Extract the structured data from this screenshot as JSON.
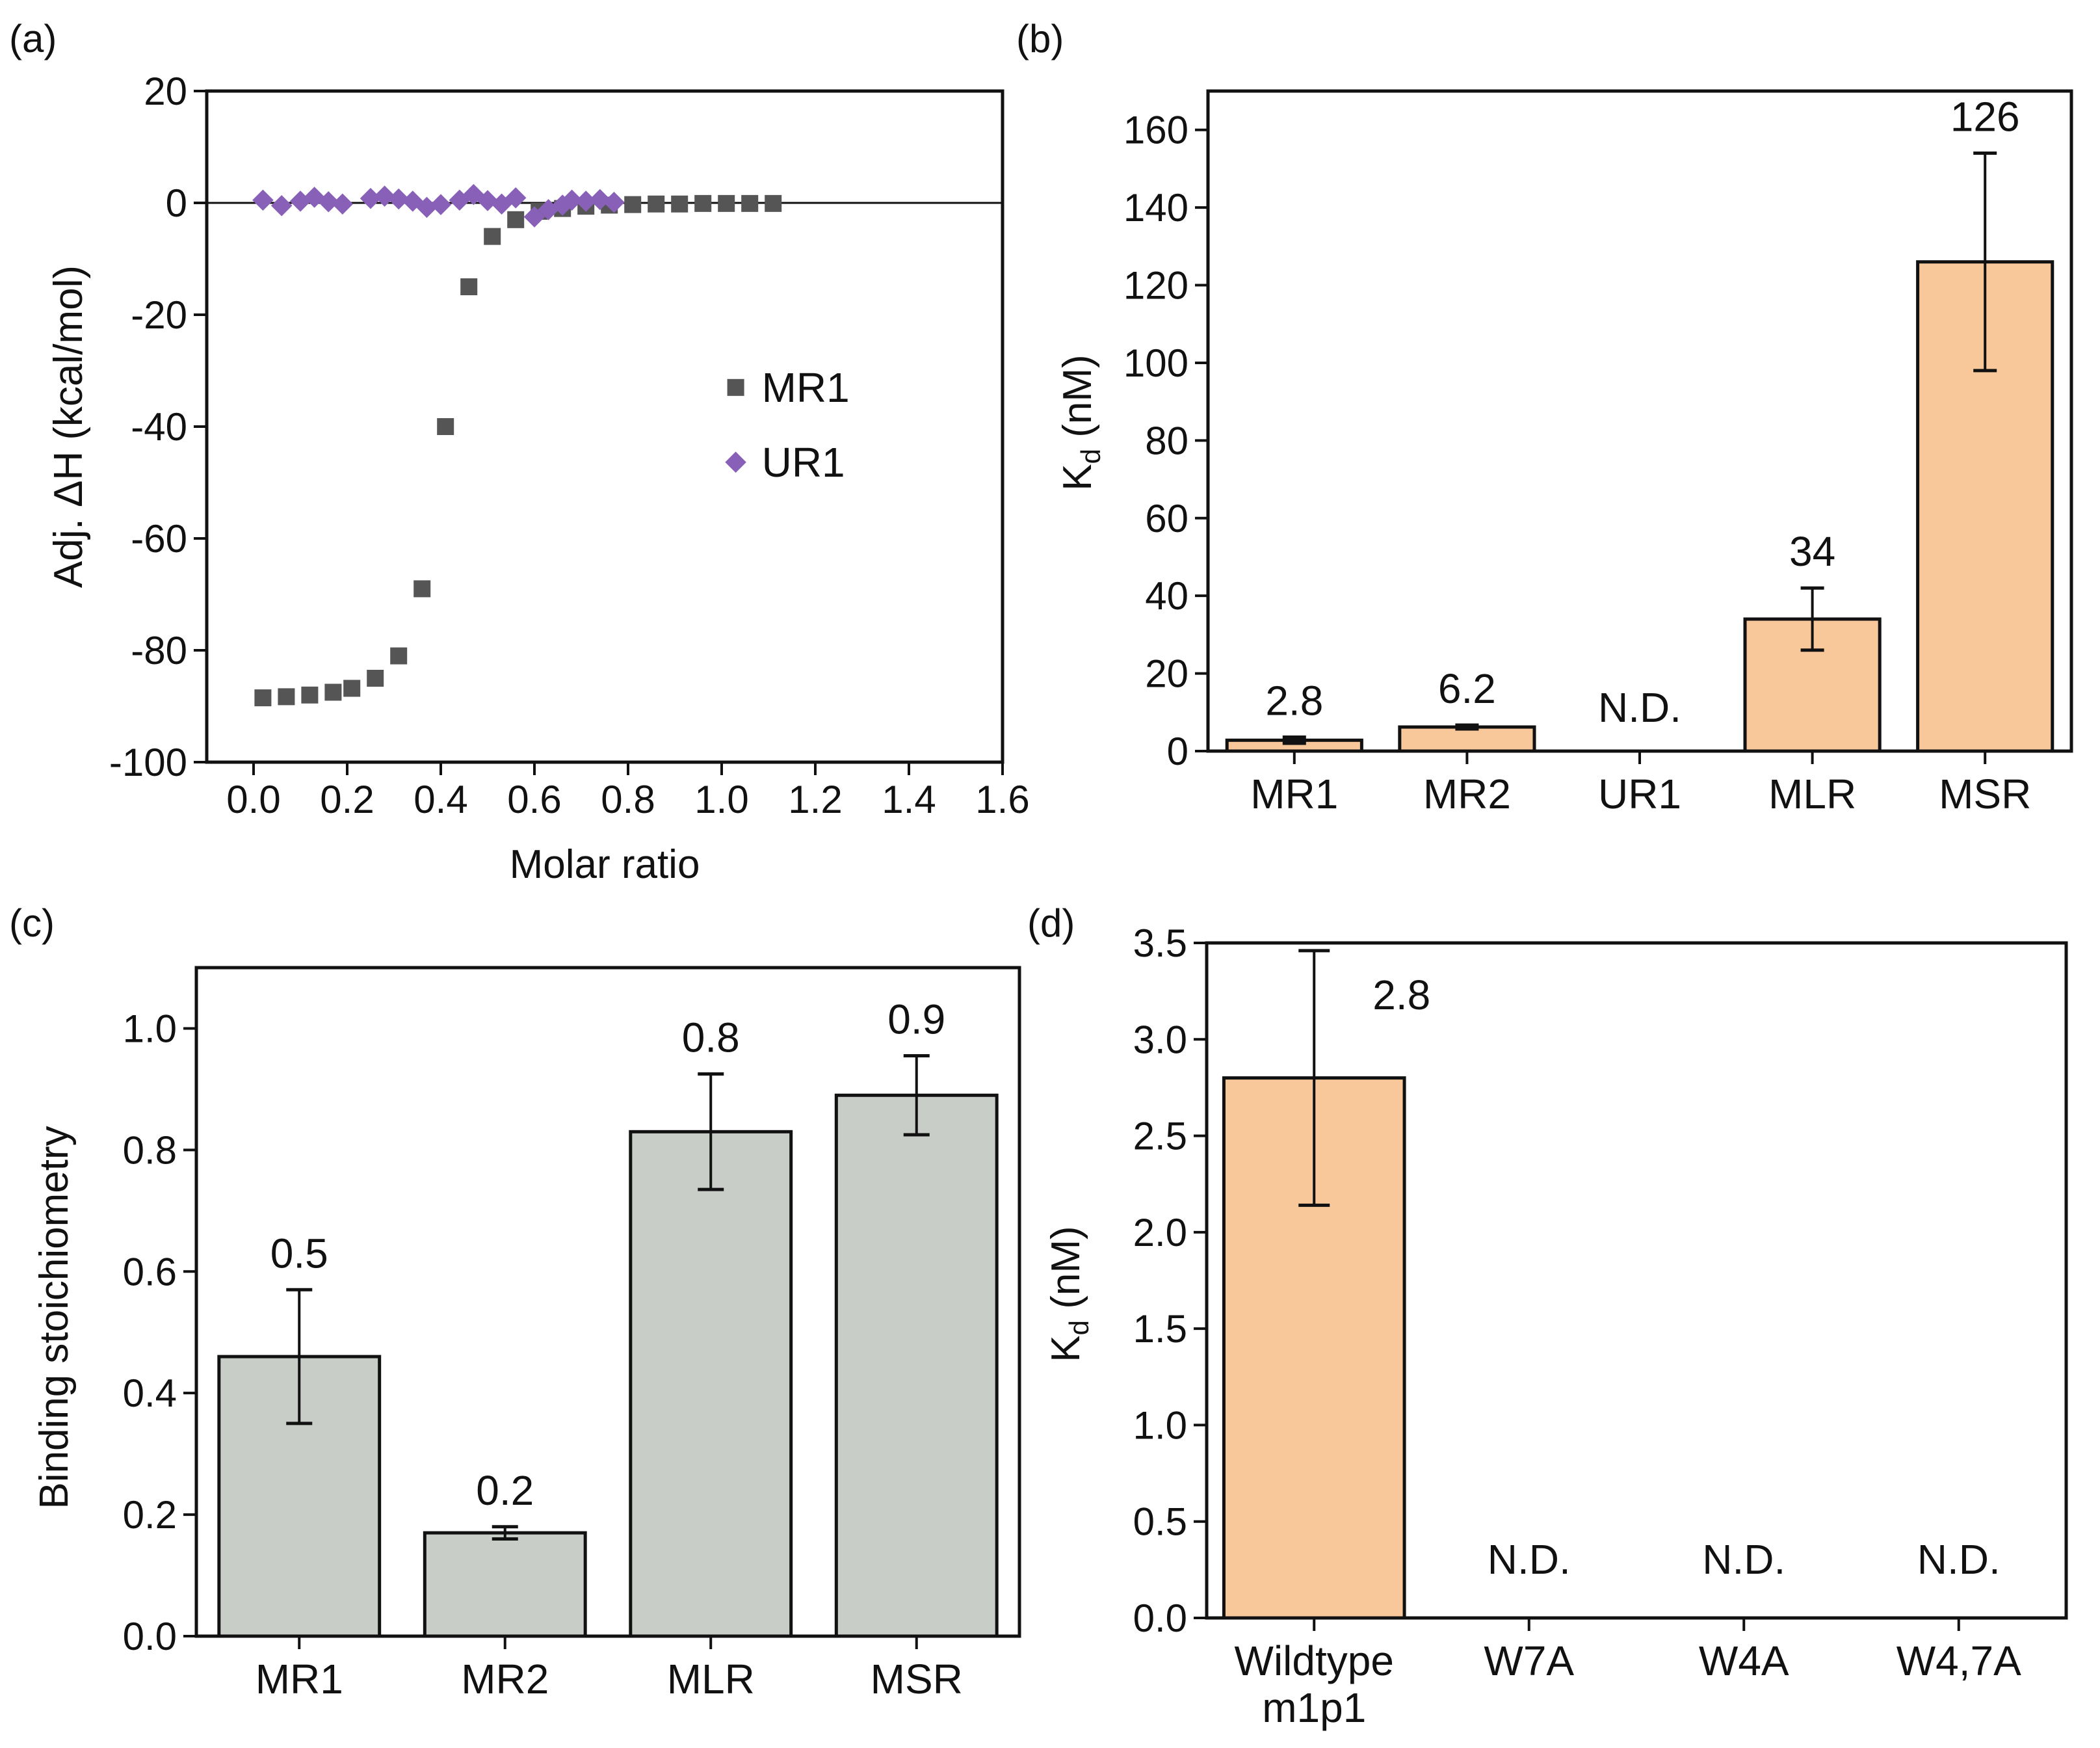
{
  "colors": {
    "mr1_marker": "#555555",
    "ur1_marker": "#8860b8",
    "kd_bar": "#f8c89a",
    "stoich_bar": "#c8cdc8",
    "axis": "#111111"
  },
  "chart_data": [
    {
      "panel": "(a)",
      "type": "scatter",
      "xlabel": "Molar ratio",
      "ylabel": "Adj. ΔH (kcal/mol)",
      "xlim": [
        -0.1,
        1.6
      ],
      "ylim": [
        -100,
        20
      ],
      "xticks": [
        0.0,
        0.2,
        0.4,
        0.6,
        0.8,
        1.0,
        1.2,
        1.4,
        1.6
      ],
      "xtick_labels": [
        "0.0",
        "0.2",
        "0.4",
        "0.6",
        "0.8",
        "1.0",
        "1.2",
        "1.4",
        "1.6"
      ],
      "yticks": [
        -100,
        -80,
        -60,
        -40,
        -20,
        0,
        20
      ],
      "ytick_labels": [
        "-100",
        "-80",
        "-60",
        "-40",
        "-20",
        "0",
        "20"
      ],
      "zero_line": 0,
      "series": [
        {
          "name": "MR1",
          "marker": "square",
          "points": [
            [
              0.02,
              -88.5
            ],
            [
              0.07,
              -88.3
            ],
            [
              0.12,
              -88.0
            ],
            [
              0.17,
              -87.5
            ],
            [
              0.21,
              -86.8
            ],
            [
              0.26,
              -85.0
            ],
            [
              0.31,
              -81.0
            ],
            [
              0.36,
              -69.0
            ],
            [
              0.41,
              -40.0
            ],
            [
              0.46,
              -15.0
            ],
            [
              0.51,
              -6.0
            ],
            [
              0.56,
              -3.0
            ],
            [
              0.61,
              -1.5
            ],
            [
              0.66,
              -1.0
            ],
            [
              0.71,
              -0.6
            ],
            [
              0.76,
              -0.4
            ],
            [
              0.81,
              -0.3
            ],
            [
              0.86,
              -0.2
            ],
            [
              0.91,
              -0.2
            ],
            [
              0.96,
              -0.1
            ],
            [
              1.01,
              -0.1
            ],
            [
              1.06,
              -0.1
            ],
            [
              1.11,
              -0.1
            ]
          ]
        },
        {
          "name": "UR1",
          "marker": "diamond",
          "points": [
            [
              0.02,
              0.5
            ],
            [
              0.06,
              -0.5
            ],
            [
              0.1,
              0.3
            ],
            [
              0.13,
              1.0
            ],
            [
              0.16,
              0.2
            ],
            [
              0.19,
              -0.2
            ],
            [
              0.25,
              0.8
            ],
            [
              0.28,
              1.2
            ],
            [
              0.31,
              0.7
            ],
            [
              0.34,
              0.3
            ],
            [
              0.37,
              -0.8
            ],
            [
              0.4,
              -0.3
            ],
            [
              0.44,
              0.5
            ],
            [
              0.47,
              1.5
            ],
            [
              0.5,
              0.4
            ],
            [
              0.53,
              -0.2
            ],
            [
              0.56,
              0.9
            ],
            [
              0.6,
              -2.5
            ],
            [
              0.63,
              -1.2
            ],
            [
              0.66,
              -0.4
            ],
            [
              0.68,
              0.5
            ],
            [
              0.71,
              0.3
            ],
            [
              0.74,
              0.6
            ],
            [
              0.77,
              0.1
            ]
          ]
        }
      ]
    },
    {
      "panel": "(b)",
      "type": "bar",
      "ylabel_main": "K",
      "ylabel_sub": "d",
      "ylabel_unit": " (nM)",
      "ylim": [
        0,
        170
      ],
      "yticks": [
        0,
        20,
        40,
        60,
        80,
        100,
        120,
        140,
        160
      ],
      "ytick_labels": [
        "0",
        "20",
        "40",
        "60",
        "80",
        "100",
        "120",
        "140",
        "160"
      ],
      "categories": [
        "MR1",
        "MR2",
        "UR1",
        "MLR",
        "MSR"
      ],
      "values": [
        2.8,
        6.2,
        null,
        34,
        126
      ],
      "errors": [
        0.8,
        0.5,
        null,
        8,
        28
      ],
      "value_labels": [
        "2.8",
        "6.2",
        "N.D.",
        "34",
        "126"
      ]
    },
    {
      "panel": "(c)",
      "type": "bar",
      "ylabel": "Binding stoichiometry",
      "ylim": [
        0,
        1.1
      ],
      "yticks": [
        0,
        0.2,
        0.4,
        0.6,
        0.8,
        1.0
      ],
      "ytick_labels": [
        "0.0",
        "0.2",
        "0.4",
        "0.6",
        "0.8",
        "1.0"
      ],
      "categories": [
        "MR1",
        "MR2",
        "MLR",
        "MSR"
      ],
      "values": [
        0.46,
        0.17,
        0.83,
        0.89
      ],
      "errors": [
        0.11,
        0.01,
        0.095,
        0.065
      ],
      "value_labels": [
        "0.5",
        "0.2",
        "0.8",
        "0.9"
      ]
    },
    {
      "panel": "(d)",
      "type": "bar",
      "ylabel_main": "K",
      "ylabel_sub": "d",
      "ylabel_unit": " (nM)",
      "ylim": [
        0,
        3.5
      ],
      "yticks": [
        0,
        0.5,
        1.0,
        1.5,
        2.0,
        2.5,
        3.0,
        3.5
      ],
      "ytick_labels": [
        "0.0",
        "0.5",
        "1.0",
        "1.5",
        "2.0",
        "2.5",
        "3.0",
        "3.5"
      ],
      "categories": [
        [
          "Wildtype",
          "m1p1"
        ],
        [
          "W7A"
        ],
        [
          "W4A"
        ],
        [
          "W4,7A"
        ]
      ],
      "values": [
        2.8,
        null,
        null,
        null
      ],
      "errors": [
        0.66,
        null,
        null,
        null
      ],
      "value_labels": [
        "2.8",
        "N.D.",
        "N.D.",
        "N.D."
      ]
    }
  ]
}
